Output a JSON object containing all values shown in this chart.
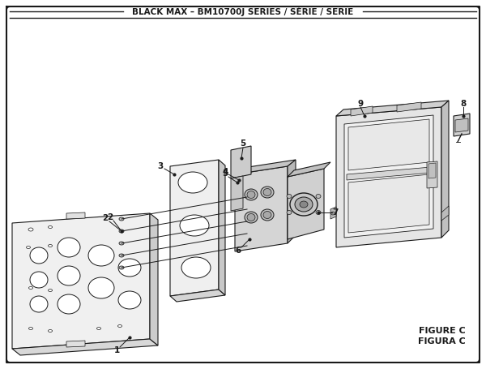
{
  "title": "BLACK MAX – BM10700J SERIES / SÉRIE / SERIE",
  "figure_label": "FIGURE C",
  "figura_label": "FIGURA C",
  "bg_color": "#ffffff",
  "line_color": "#1a1a1a"
}
